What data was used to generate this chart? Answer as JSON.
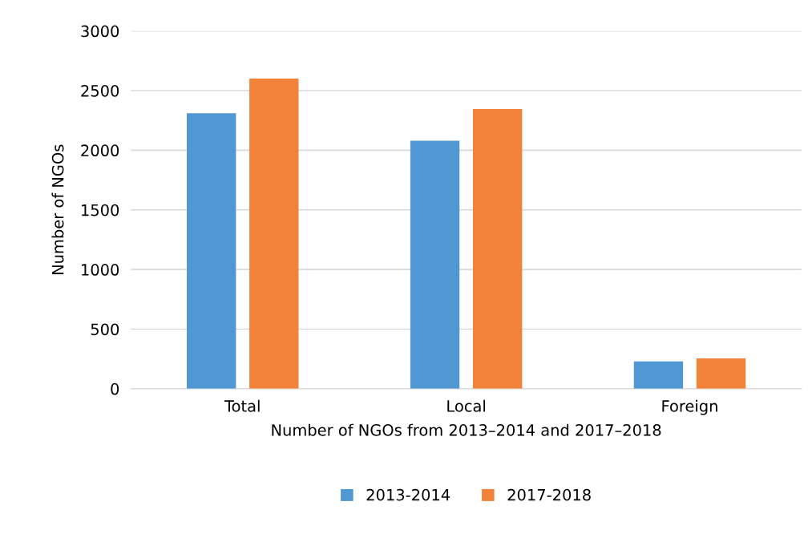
{
  "chart_data": {
    "type": "bar",
    "xlabel": "Number of NGOs from 2013–2014 and 2017–2018",
    "ylabel": "Number of NGOs",
    "categories": [
      "Total",
      "Local",
      "Foreign"
    ],
    "series": [
      {
        "name": "2013-2014",
        "color": "#5097d3",
        "values": [
          2310,
          2080,
          230
        ]
      },
      {
        "name": "2017-2018",
        "color": "#f2823a",
        "values": [
          2600,
          2345,
          255
        ]
      }
    ],
    "ylim": [
      0,
      3000
    ],
    "yticks": [
      0,
      500,
      1000,
      1500,
      2000,
      2500,
      3000
    ],
    "grid": "y",
    "legend": "bottom"
  }
}
